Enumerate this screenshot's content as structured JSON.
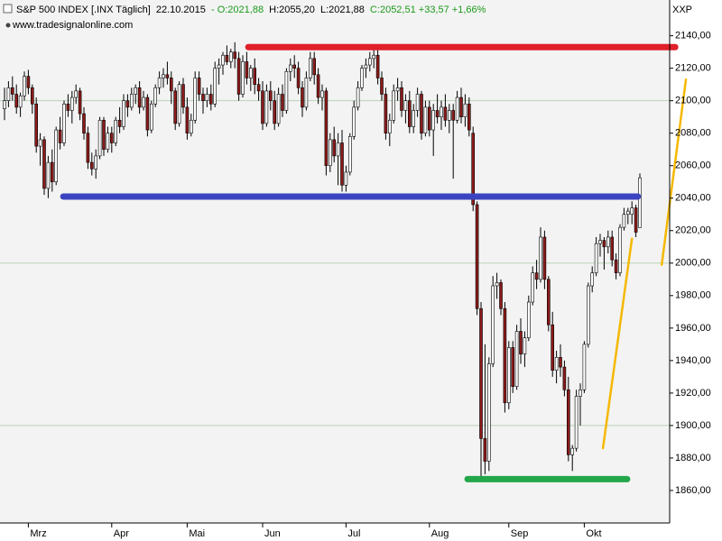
{
  "chart_data": {
    "type": "candlestick",
    "header": {
      "instrument": "S&P 500 INDEX [.INX  Täglich]",
      "date": "22.10.2015",
      "open": "- O:2021,88",
      "high": "H:2055,20",
      "low": "L:2021,88",
      "close": "C:2052,51 +33,57 +1,66%"
    },
    "source": "www.tradesignalonline.com",
    "y_axis_name": "XXP",
    "up_color": "#ffffff",
    "down_color": "#8b1a1a",
    "wick_color": "#000000",
    "categories": [
      null,
      null,
      null,
      null,
      null,
      null,
      "Mrz",
      null,
      null,
      null,
      null,
      null,
      null,
      null,
      null,
      null,
      null,
      null,
      null,
      null,
      null,
      null,
      null,
      null,
      null,
      null,
      null,
      "Apr",
      null,
      null,
      null,
      null,
      null,
      null,
      null,
      null,
      null,
      null,
      null,
      null,
      null,
      null,
      null,
      null,
      null,
      null,
      "Mai",
      null,
      null,
      null,
      null,
      null,
      null,
      null,
      null,
      null,
      null,
      null,
      null,
      null,
      null,
      null,
      null,
      null,
      null,
      "Jun",
      null,
      null,
      null,
      null,
      null,
      null,
      null,
      null,
      null,
      null,
      null,
      null,
      null,
      null,
      null,
      null,
      null,
      null,
      null,
      null,
      "Jul",
      null,
      null,
      null,
      null,
      null,
      null,
      null,
      null,
      null,
      null,
      null,
      null,
      null,
      null,
      null,
      null,
      null,
      null,
      null,
      null,
      "Aug",
      null,
      null,
      null,
      null,
      null,
      null,
      null,
      null,
      null,
      null,
      null,
      null,
      null,
      null,
      null,
      null,
      null,
      null,
      null,
      "Sep",
      null,
      null,
      null,
      null,
      null,
      null,
      null,
      null,
      null,
      null,
      null,
      null,
      null,
      null,
      null,
      null,
      null,
      null,
      "Okt",
      null,
      null,
      null,
      null,
      null,
      null,
      null,
      null,
      null,
      null,
      null,
      null,
      null,
      null
    ],
    "open": [
      2095,
      2100,
      2108,
      2104,
      2096,
      2103,
      2115,
      2108,
      2098,
      2072,
      2076,
      2046,
      2062,
      2050,
      2082,
      2074,
      2098,
      2094,
      2102,
      2106,
      2092,
      2080,
      2062,
      2058,
      2066,
      2088,
      2070,
      2080,
      2074,
      2088,
      2084,
      2100,
      2096,
      2104,
      2108,
      2096,
      2102,
      2082,
      2098,
      2108,
      2114,
      2116,
      2114,
      2106,
      2086,
      2110,
      2096,
      2080,
      2088,
      2114,
      2104,
      2100,
      2104,
      2098,
      2120,
      2122,
      2128,
      2124,
      2130,
      2126,
      2104,
      2124,
      2114,
      2120,
      2110,
      2106,
      2086,
      2106,
      2100,
      2086,
      2104,
      2094,
      2118,
      2122,
      2120,
      2108,
      2096,
      2114,
      2126,
      2116,
      2102,
      2106,
      2060,
      2076,
      2066,
      2074,
      2048,
      2056,
      2078,
      2096,
      2108,
      2120,
      2122,
      2126,
      2128,
      2114,
      2104,
      2080,
      2088,
      2106,
      2108,
      2094,
      2100,
      2084,
      2094,
      2104,
      2080,
      2096,
      2082,
      2094,
      2090,
      2096,
      2088,
      2094,
      2088,
      2102,
      2090,
      2098,
      2080,
      2036,
      1972,
      1892,
      1878,
      1938,
      1986,
      1988,
      1972,
      1914,
      1948,
      1924,
      1958,
      1944,
      1954,
      1976,
      1994,
      1990,
      2016,
      1990,
      1962,
      1934,
      1942,
      1936,
      1922,
      1882,
      1886,
      1918,
      1922,
      1950,
      1986,
      1994,
      2012,
      2014,
      2010,
      2016,
      2002,
      1994,
      2022,
      2030,
      2030,
      2034,
      2021.88
    ],
    "high": [
      2108,
      2112,
      2115,
      2110,
      2105,
      2118,
      2119,
      2110,
      2102,
      2080,
      2078,
      2066,
      2070,
      2084,
      2090,
      2100,
      2104,
      2106,
      2110,
      2108,
      2096,
      2084,
      2068,
      2070,
      2090,
      2090,
      2084,
      2084,
      2090,
      2096,
      2104,
      2104,
      2108,
      2110,
      2112,
      2106,
      2104,
      2100,
      2110,
      2118,
      2120,
      2124,
      2118,
      2108,
      2112,
      2114,
      2102,
      2092,
      2118,
      2118,
      2108,
      2108,
      2110,
      2124,
      2126,
      2130,
      2134,
      2132,
      2136,
      2130,
      2128,
      2130,
      2122,
      2126,
      2114,
      2112,
      2110,
      2112,
      2106,
      2108,
      2110,
      2120,
      2126,
      2128,
      2124,
      2112,
      2118,
      2130,
      2130,
      2120,
      2110,
      2108,
      2080,
      2084,
      2080,
      2082,
      2060,
      2080,
      2100,
      2112,
      2122,
      2126,
      2130,
      2134,
      2132,
      2118,
      2108,
      2092,
      2110,
      2114,
      2112,
      2104,
      2106,
      2098,
      2108,
      2106,
      2100,
      2100,
      2098,
      2104,
      2100,
      2104,
      2098,
      2098,
      2106,
      2108,
      2104,
      2102,
      2084,
      2038,
      1976,
      1950,
      1942,
      1992,
      1994,
      1990,
      1976,
      1952,
      1952,
      1962,
      1966,
      1958,
      1980,
      1998,
      2002,
      2022,
      2020,
      1992,
      1970,
      1946,
      1950,
      1940,
      1930,
      1888,
      1922,
      1926,
      1952,
      1988,
      1998,
      2016,
      2018,
      2016,
      2020,
      2020,
      2006,
      2024,
      2034,
      2034,
      2038,
      2036,
      2055.2
    ],
    "low": [
      2088,
      2096,
      2100,
      2092,
      2090,
      2100,
      2104,
      2092,
      2068,
      2060,
      2042,
      2040,
      2044,
      2048,
      2070,
      2072,
      2090,
      2086,
      2098,
      2088,
      2076,
      2058,
      2054,
      2052,
      2064,
      2066,
      2068,
      2068,
      2072,
      2080,
      2082,
      2090,
      2094,
      2098,
      2092,
      2094,
      2078,
      2080,
      2096,
      2104,
      2108,
      2110,
      2098,
      2082,
      2084,
      2092,
      2076,
      2078,
      2086,
      2100,
      2092,
      2096,
      2094,
      2096,
      2110,
      2116,
      2122,
      2120,
      2120,
      2100,
      2102,
      2110,
      2106,
      2104,
      2100,
      2082,
      2084,
      2094,
      2082,
      2084,
      2090,
      2092,
      2112,
      2114,
      2104,
      2090,
      2094,
      2112,
      2110,
      2098,
      2094,
      2054,
      2056,
      2062,
      2048,
      2044,
      2044,
      2054,
      2076,
      2094,
      2106,
      2114,
      2118,
      2120,
      2110,
      2100,
      2076,
      2072,
      2086,
      2100,
      2090,
      2086,
      2080,
      2080,
      2090,
      2076,
      2078,
      2078,
      2066,
      2086,
      2082,
      2084,
      2080,
      2052,
      2086,
      2086,
      2084,
      2078,
      2032,
      1968,
      1868,
      1870,
      1872,
      1936,
      1978,
      1968,
      1908,
      1910,
      1920,
      1922,
      1938,
      1936,
      1952,
      1974,
      1984,
      1988,
      1984,
      1958,
      1930,
      1926,
      1930,
      1918,
      1878,
      1872,
      1884,
      1900,
      1920,
      1948,
      1982,
      1992,
      2004,
      1996,
      2006,
      1998,
      1990,
      1992,
      2020,
      2024,
      2024,
      2016,
      2021.88
    ],
    "close": [
      2100,
      2108,
      2104,
      2096,
      2103,
      2115,
      2108,
      2098,
      2072,
      2076,
      2046,
      2062,
      2050,
      2082,
      2074,
      2098,
      2094,
      2102,
      2106,
      2092,
      2080,
      2062,
      2058,
      2066,
      2088,
      2070,
      2080,
      2074,
      2088,
      2084,
      2100,
      2096,
      2104,
      2108,
      2096,
      2102,
      2082,
      2098,
      2108,
      2114,
      2116,
      2114,
      2106,
      2086,
      2110,
      2096,
      2080,
      2088,
      2114,
      2104,
      2100,
      2104,
      2098,
      2120,
      2122,
      2128,
      2124,
      2130,
      2126,
      2104,
      2124,
      2114,
      2120,
      2110,
      2106,
      2086,
      2106,
      2100,
      2086,
      2104,
      2094,
      2118,
      2122,
      2120,
      2108,
      2096,
      2114,
      2126,
      2116,
      2102,
      2106,
      2060,
      2076,
      2066,
      2074,
      2048,
      2056,
      2078,
      2096,
      2108,
      2120,
      2122,
      2126,
      2128,
      2114,
      2104,
      2080,
      2088,
      2106,
      2108,
      2094,
      2100,
      2084,
      2094,
      2104,
      2080,
      2096,
      2082,
      2094,
      2090,
      2096,
      2088,
      2094,
      2088,
      2102,
      2090,
      2098,
      2082,
      2036,
      1972,
      1892,
      1878,
      1938,
      1986,
      1988,
      1972,
      1914,
      1948,
      1924,
      1958,
      1944,
      1954,
      1976,
      1994,
      1990,
      2016,
      1990,
      1962,
      1934,
      1942,
      1936,
      1922,
      1882,
      1886,
      1918,
      1922,
      1950,
      1986,
      1994,
      2012,
      2014,
      2010,
      2016,
      2002,
      1994,
      2022,
      2030,
      2032,
      2034,
      2019,
      2052.51
    ],
    "ylim": [
      1840,
      2162
    ],
    "yticks": [
      {
        "value": 1860,
        "label": "1860,00"
      },
      {
        "value": 1880,
        "label": "1880,00"
      },
      {
        "value": 1900,
        "label": "1900,00"
      },
      {
        "value": 1920,
        "label": "1920,00"
      },
      {
        "value": 1940,
        "label": "1940,00"
      },
      {
        "value": 1960,
        "label": "1960,00"
      },
      {
        "value": 1980,
        "label": "1980,00"
      },
      {
        "value": 2000,
        "label": "2000,00"
      },
      {
        "value": 2020,
        "label": "2020,00"
      },
      {
        "value": 2040,
        "label": "2040,00"
      },
      {
        "value": 2060,
        "label": "2060,00"
      },
      {
        "value": 2080,
        "label": "2080,00"
      },
      {
        "value": 2100,
        "label": "2100,00"
      },
      {
        "value": 2120,
        "label": "2120,00"
      },
      {
        "value": 2140,
        "label": "2140,00"
      }
    ],
    "ygrid": [
      1900,
      2000,
      2100
    ],
    "lines": [
      {
        "color": "#e0202a",
        "x": [
          61.4,
          168.9
        ],
        "y": [
          2133,
          2133
        ]
      },
      {
        "color": "#3b44c0",
        "x": [
          14.8,
          159.5
        ],
        "y": [
          2041,
          2041
        ]
      },
      {
        "color": "#22a64a",
        "x": [
          116.6,
          156.8
        ],
        "y": [
          1867,
          1867
        ]
      },
      {
        "color": "#f5b800",
        "x": [
          150.7,
          158
        ],
        "y": [
          1886,
          2015
        ]
      },
      {
        "color": "#f5b800",
        "x": [
          165.5,
          171.6
        ],
        "y": [
          1999,
          2113
        ]
      }
    ]
  }
}
